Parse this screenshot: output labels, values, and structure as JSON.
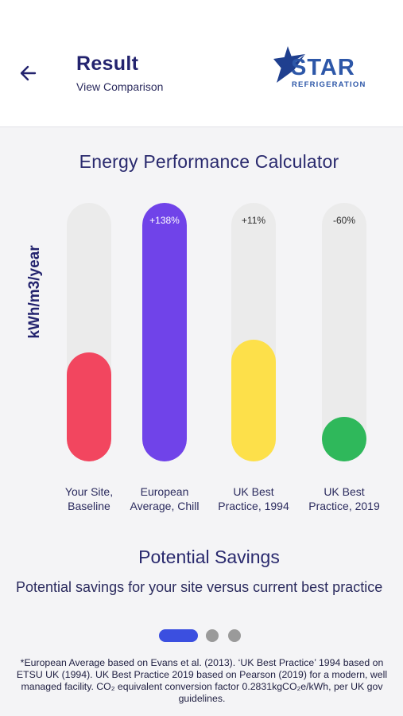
{
  "header": {
    "back_icon": "arrow-left-icon",
    "title": "Result",
    "subtitle": "View Comparison",
    "logo": {
      "main": "STAR",
      "sub": "REFRIGERATION"
    }
  },
  "calculator": {
    "title": "Energy Performance Calculator",
    "y_label": "kWh/m3/year"
  },
  "chart_data": {
    "type": "bar",
    "title": "Energy Performance Calculator",
    "ylabel": "kWh/m3/year",
    "categories": [
      "Your Site, Baseline",
      "European Average, Chill",
      "UK Best Practice, 1994",
      "UK Best Practice, 2019"
    ],
    "fill_fraction": [
      0.42,
      1.0,
      0.47,
      0.17
    ],
    "percent_labels": [
      "",
      "+138%",
      "+11%",
      "-60%"
    ],
    "colors": [
      "#f2465f",
      "#7043e9",
      "#fde04a",
      "#2fb85b"
    ],
    "label_lines": [
      [
        "Your Site,",
        "Baseline"
      ],
      [
        "European",
        "Average, Chill"
      ],
      [
        "UK Best",
        "Practice, 1994"
      ],
      [
        "UK Best",
        "Practice, 2019"
      ]
    ]
  },
  "savings": {
    "title": "Potential Savings",
    "text": "Potential savings for your site versus current best practice"
  },
  "pagination": {
    "count": 3,
    "active": 0
  },
  "footnote": "*European Average based on Evans et al. (2013). ‘UK Best Practice’ 1994 based on ETSU UK (1994). UK Best Practice 2019 based on Pearson (2019) for a modern, well managed facility.  CO₂ equivalent conversion factor 0.2831kgCO₂e/kWh, per UK gov guidelines."
}
